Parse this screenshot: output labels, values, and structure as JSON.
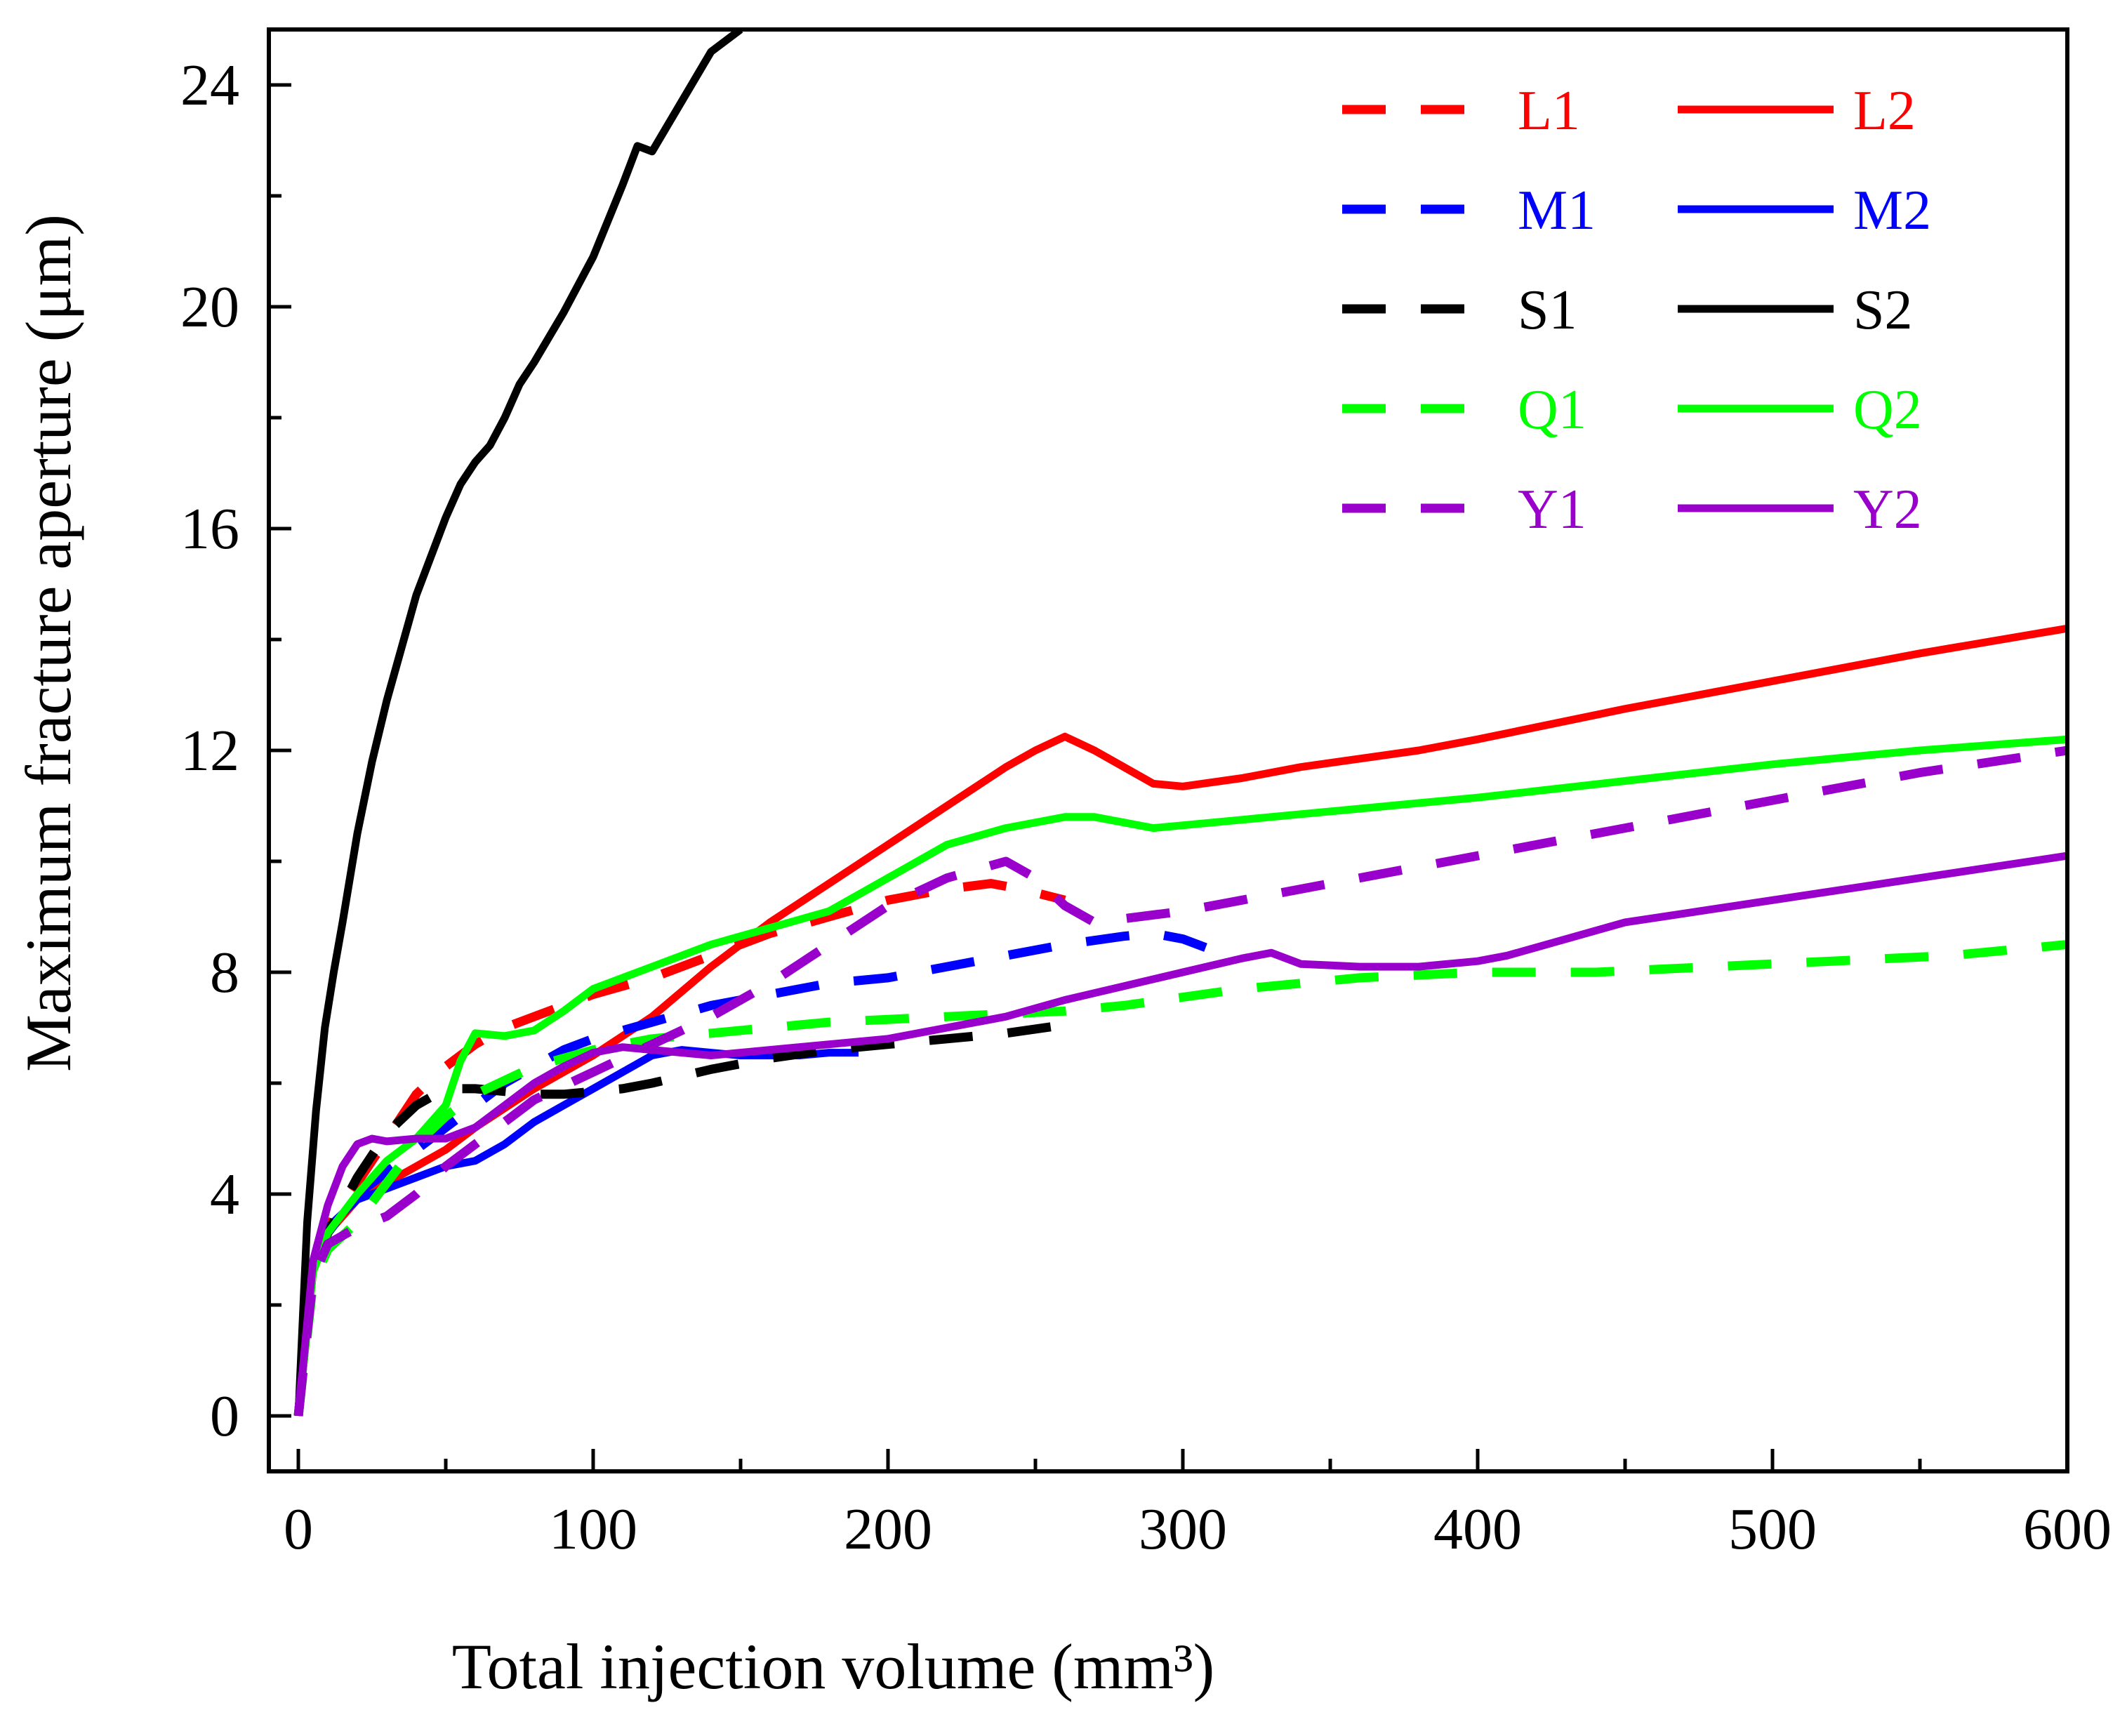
{
  "chart_data": {
    "type": "line",
    "title": "",
    "xlabel": "Total injection volume (mm³)",
    "ylabel": "Maximum fracture aperture (μm)",
    "xlim": [
      -10,
      600
    ],
    "ylim": [
      -1,
      25
    ],
    "xticks": [
      0,
      100,
      200,
      300,
      400,
      500,
      600
    ],
    "yticks": [
      0,
      4,
      8,
      12,
      16,
      20,
      24
    ],
    "x_minor_step": 50,
    "y_minor_step": 2,
    "legend_position": "top-right",
    "series": [
      {
        "name": "L1",
        "color": "#ff0000",
        "dash": "dashed",
        "x": [
          0,
          5,
          10,
          20,
          30,
          40,
          50,
          60,
          70,
          80,
          90,
          100,
          120,
          140,
          160,
          180,
          200,
          220,
          235,
          245,
          260
        ],
        "y": [
          0,
          2.6,
          3.4,
          4.2,
          5.0,
          5.8,
          6.3,
          6.7,
          7.0,
          7.2,
          7.4,
          7.6,
          7.9,
          8.3,
          8.7,
          9.0,
          9.3,
          9.5,
          9.6,
          9.5,
          9.3
        ]
      },
      {
        "name": "L2",
        "color": "#ff0000",
        "dash": "solid",
        "x": [
          0,
          5,
          10,
          20,
          30,
          40,
          50,
          60,
          80,
          100,
          120,
          140,
          160,
          180,
          200,
          220,
          240,
          250,
          260,
          270,
          280,
          290,
          300,
          320,
          340,
          360,
          380,
          400,
          450,
          500,
          550,
          600
        ],
        "y": [
          0,
          2.6,
          3.3,
          3.9,
          4.2,
          4.5,
          4.8,
          5.2,
          5.9,
          6.5,
          7.2,
          8.1,
          8.9,
          9.6,
          10.3,
          11.0,
          11.7,
          12.0,
          12.25,
          12.0,
          11.7,
          11.4,
          11.35,
          11.5,
          11.7,
          11.85,
          12.0,
          12.2,
          12.75,
          13.25,
          13.75,
          14.2
        ]
      },
      {
        "name": "M1",
        "color": "#0000ff",
        "dash": "dashed",
        "x": [
          0,
          5,
          10,
          20,
          30,
          40,
          50,
          60,
          70,
          80,
          90,
          100,
          120,
          140,
          160,
          180,
          200,
          220,
          240,
          260,
          280,
          290,
          300,
          310
        ],
        "y": [
          0,
          2.6,
          3.3,
          4.0,
          4.4,
          4.8,
          5.2,
          5.6,
          6.0,
          6.3,
          6.6,
          6.8,
          7.1,
          7.4,
          7.6,
          7.8,
          7.9,
          8.1,
          8.3,
          8.5,
          8.65,
          8.7,
          8.6,
          8.4
        ]
      },
      {
        "name": "M2",
        "color": "#0000ff",
        "dash": "solid",
        "x": [
          0,
          5,
          10,
          20,
          30,
          40,
          50,
          60,
          70,
          80,
          90,
          100,
          110,
          120,
          130,
          140,
          150,
          160,
          170,
          180,
          190
        ],
        "y": [
          0,
          2.7,
          3.4,
          3.9,
          4.1,
          4.3,
          4.5,
          4.6,
          4.9,
          5.3,
          5.6,
          5.9,
          6.2,
          6.5,
          6.6,
          6.55,
          6.5,
          6.5,
          6.5,
          6.55,
          6.55
        ]
      },
      {
        "name": "S1",
        "color": "#000000",
        "dash": "dashed",
        "x": [
          0,
          5,
          10,
          20,
          30,
          40,
          50,
          60,
          70,
          80,
          90,
          100,
          110,
          120,
          140,
          160,
          180,
          200,
          220,
          240,
          260
        ],
        "y": [
          0,
          2.5,
          3.3,
          4.3,
          5.1,
          5.6,
          5.9,
          5.9,
          5.85,
          5.8,
          5.8,
          5.85,
          5.9,
          6.0,
          6.25,
          6.45,
          6.6,
          6.7,
          6.8,
          6.9,
          7.05
        ]
      },
      {
        "name": "S2",
        "color": "#000000",
        "dash": "solid",
        "x": [
          0,
          3,
          6,
          9,
          12,
          15,
          20,
          25,
          30,
          40,
          50,
          55,
          60,
          65,
          70,
          75,
          80,
          90,
          100,
          110,
          115,
          120,
          130,
          140,
          150
        ],
        "y": [
          0,
          3.5,
          5.5,
          7.0,
          8.0,
          8.9,
          10.5,
          11.8,
          12.9,
          14.8,
          16.2,
          16.8,
          17.2,
          17.5,
          18.0,
          18.6,
          19.0,
          19.9,
          20.9,
          22.2,
          22.9,
          22.8,
          23.7,
          24.6,
          25.0
        ]
      },
      {
        "name": "Q1",
        "color": "#00ff00",
        "dash": "dashed",
        "x": [
          0,
          5,
          10,
          20,
          30,
          40,
          50,
          60,
          80,
          100,
          120,
          140,
          160,
          180,
          200,
          220,
          240,
          260,
          280,
          300,
          320,
          340,
          360,
          380,
          400,
          420,
          440,
          460,
          480,
          500,
          520,
          540,
          560,
          580,
          600
        ],
        "y": [
          0,
          2.4,
          3.0,
          3.5,
          4.2,
          4.9,
          5.4,
          5.8,
          6.3,
          6.6,
          6.8,
          6.9,
          7.0,
          7.1,
          7.15,
          7.2,
          7.25,
          7.3,
          7.4,
          7.55,
          7.7,
          7.8,
          7.9,
          7.95,
          8.0,
          8.0,
          8.0,
          8.05,
          8.1,
          8.15,
          8.2,
          8.25,
          8.3,
          8.4,
          8.5
        ]
      },
      {
        "name": "Q2",
        "color": "#00ff00",
        "dash": "solid",
        "x": [
          0,
          5,
          10,
          20,
          30,
          40,
          50,
          55,
          60,
          70,
          80,
          90,
          100,
          120,
          140,
          160,
          180,
          200,
          220,
          240,
          260,
          270,
          280,
          290,
          300,
          320,
          340,
          360,
          380,
          400,
          450,
          500,
          550,
          600
        ],
        "y": [
          0,
          2.6,
          3.3,
          4.0,
          4.6,
          5.0,
          5.6,
          6.4,
          6.9,
          6.85,
          6.95,
          7.3,
          7.7,
          8.1,
          8.5,
          8.8,
          9.1,
          9.7,
          10.3,
          10.6,
          10.8,
          10.8,
          10.7,
          10.6,
          10.65,
          10.75,
          10.85,
          10.95,
          11.05,
          11.15,
          11.45,
          11.75,
          12.0,
          12.2
        ]
      },
      {
        "name": "Y1",
        "color": "#9900cc",
        "dash": "dashed",
        "x": [
          0,
          5,
          10,
          20,
          30,
          40,
          50,
          60,
          70,
          80,
          100,
          120,
          140,
          160,
          180,
          200,
          220,
          240,
          250,
          260,
          270,
          300,
          350,
          400,
          450,
          500,
          550,
          600
        ],
        "y": [
          0,
          2.5,
          3.1,
          3.4,
          3.6,
          4.0,
          4.5,
          4.9,
          5.3,
          5.7,
          6.2,
          6.7,
          7.2,
          7.8,
          8.5,
          9.2,
          9.7,
          10.0,
          9.7,
          9.2,
          8.9,
          9.1,
          9.6,
          10.1,
          10.6,
          11.1,
          11.6,
          12.0
        ]
      },
      {
        "name": "Y2",
        "color": "#9900cc",
        "dash": "solid",
        "x": [
          0,
          5,
          10,
          15,
          20,
          25,
          30,
          40,
          50,
          60,
          70,
          80,
          90,
          100,
          110,
          120,
          140,
          160,
          180,
          200,
          220,
          240,
          260,
          280,
          300,
          320,
          330,
          340,
          360,
          380,
          400,
          410,
          450,
          500,
          550,
          600
        ],
        "y": [
          0,
          2.8,
          3.8,
          4.5,
          4.9,
          5.0,
          4.95,
          5.0,
          5.0,
          5.2,
          5.6,
          6.0,
          6.3,
          6.55,
          6.65,
          6.6,
          6.5,
          6.6,
          6.7,
          6.8,
          7.0,
          7.2,
          7.5,
          7.75,
          8.0,
          8.25,
          8.35,
          8.15,
          8.1,
          8.1,
          8.2,
          8.3,
          8.9,
          9.3,
          9.7,
          10.1
        ]
      }
    ]
  }
}
